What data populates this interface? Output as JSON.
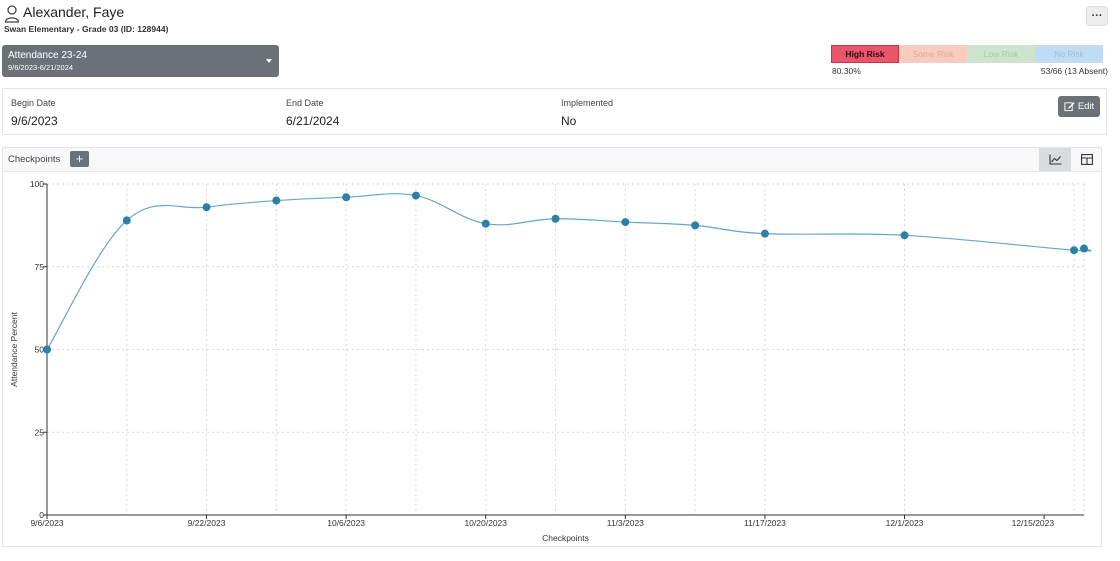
{
  "header": {
    "student_name": "Alexander, Faye",
    "subtitle": "Swan Elementary - Grade 03 (ID: 128944)",
    "more_label": "···"
  },
  "period_select": {
    "title": "Attendance 23-24",
    "range": "9/6/2023-6/21/2024"
  },
  "risk": {
    "segments": [
      {
        "label": "High Risk",
        "bg": "#e8566c",
        "fg": "#2b0a10"
      },
      {
        "label": "Some Risk",
        "bg": "#f8cdbf",
        "fg": "#e3a99a"
      },
      {
        "label": "Low Risk",
        "bg": "#cfe4cd",
        "fg": "#a9c4a8"
      },
      {
        "label": "No Risk",
        "bg": "#bfdcf3",
        "fg": "#98bcd8"
      }
    ],
    "percent_text": "80.30%",
    "days_text": "53/66 (13 Absent)"
  },
  "details": {
    "begin_label": "Begin Date",
    "begin_value": "9/6/2023",
    "end_label": "End Date",
    "end_value": "6/21/2024",
    "implemented_label": "Implemented",
    "implemented_value": "No",
    "edit_label": "Edit"
  },
  "checkpoints": {
    "label": "Checkpoints",
    "add_label": "+"
  },
  "colors": {
    "line": "#63a8c8",
    "point": "#2b7fa8",
    "grid": "#d9d9d9"
  },
  "chart_data": {
    "type": "line",
    "xlabel": "Checkpoints",
    "ylabel": "Attendance Percent",
    "ylim": [
      0,
      100
    ],
    "yticks": [
      0,
      25,
      50,
      75,
      100
    ],
    "xlim": [
      "9/6/2023",
      "12/19/2023"
    ],
    "xtick_labels": [
      "9/6/2023",
      "9/22/2023",
      "10/6/2023",
      "10/20/2023",
      "11/3/2023",
      "11/17/2023",
      "12/1/2023",
      "12/15/2023"
    ],
    "grid": true,
    "series": [
      {
        "x": [
          "9/6/2023",
          "9/14/2023",
          "9/22/2023",
          "9/29/2023",
          "10/6/2023",
          "10/13/2023",
          "10/20/2023",
          "10/27/2023",
          "11/3/2023",
          "11/10/2023",
          "11/17/2023",
          "12/1/2023",
          "12/18/2023",
          "12/19/2023"
        ],
        "y": [
          50,
          89,
          93,
          95,
          96,
          96.5,
          88,
          89.5,
          88.5,
          87.5,
          85,
          84.5,
          80,
          80.5
        ]
      }
    ]
  }
}
